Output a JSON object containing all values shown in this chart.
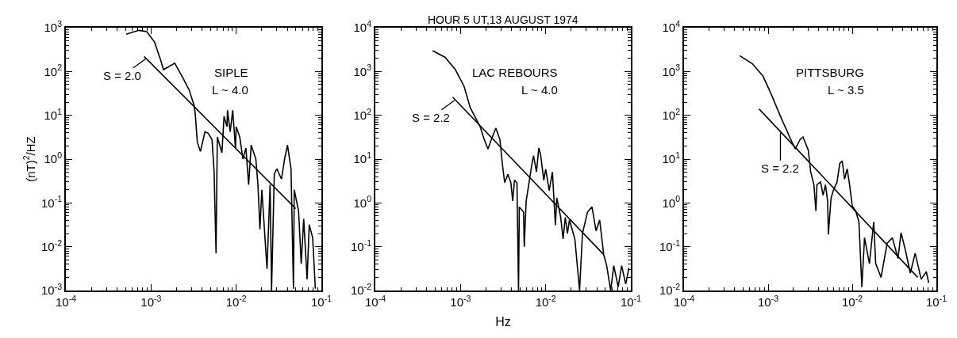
{
  "chart_data": [
    {
      "type": "line",
      "ylabel": "(nT)$^{2}$/HZ",
      "annotations": [
        "SIPLE",
        "L ~ 4.0",
        {
          "text": "S = 2.0",
          "x": 0.00088,
          "y": 200
        }
      ],
      "series": [
        {
          "color": "#000000",
          "x": [
            0.00051,
            0.00072,
            0.00089,
            0.0011,
            0.0013,
            0.0014,
            0.0019,
            0.0024,
            0.0028,
            0.0032,
            0.0033,
            0.0035,
            0.0038,
            0.0043,
            0.0047,
            0.0052,
            0.0055,
            0.0058,
            0.006,
            0.0068,
            0.0072,
            0.0078,
            0.0079,
            0.0085,
            0.0091,
            0.0098,
            0.01,
            0.011,
            0.012,
            0.013,
            0.014,
            0.015,
            0.017,
            0.018,
            0.019,
            0.02,
            0.023,
            0.025,
            0.026,
            0.028,
            0.03,
            0.034,
            0.037,
            0.04,
            0.044,
            0.047,
            0.048,
            0.054,
            0.058,
            0.062,
            0.068,
            0.072,
            0.079,
            0.085
          ],
          "values": [
            710,
            870,
            810,
            470,
            180,
            110,
            155,
            68,
            38,
            17,
            11,
            2.4,
            1.5,
            4.2,
            3.9,
            2.8,
            0.52,
            0.0071,
            3.2,
            1.4,
            9.5,
            5.5,
            13,
            4.2,
            13,
            1.8,
            5.5,
            3.2,
            1.0,
            1.8,
            0.26,
            2.1,
            1.0,
            0.26,
            0.025,
            0.2,
            0.0031,
            0.26,
            0.001,
            0.46,
            0.6,
            0.35,
            1.0,
            2.1,
            0.6,
            0.0011,
            0.2,
            0.065,
            0.0041,
            0.043,
            0.0018,
            0.032,
            0.016,
            0.0011
          ]
        },
        {
          "color": "#000000",
          "x": [
            0.00083,
            0.05
          ],
          "values": [
            220,
            0.074
          ]
        }
      ],
      "xlim": [
        0.0001,
        0.1
      ],
      "ylim": [
        0.001,
        1000
      ],
      "log": "xy",
      "xticks": [
        {
          "value": 0.0001,
          "label": "10$^{-4}$"
        },
        {
          "value": 0.001,
          "label": "10$^{-3}$"
        },
        {
          "value": 0.01,
          "label": "10$^{-2}$"
        },
        {
          "value": 0.1,
          "label": "10$^{-1}$"
        }
      ],
      "yticks": [
        {
          "value": 0.001,
          "label": "10$^{-3}$"
        },
        {
          "value": 0.01,
          "label": "10$^{-2}$"
        },
        {
          "value": 0.1,
          "label": "10$^{-1}$"
        },
        {
          "value": 1,
          "label": "10$^{0}$"
        },
        {
          "value": 10,
          "label": "10$^{1}$"
        },
        {
          "value": 100,
          "label": "10$^{2}$"
        },
        {
          "value": 1000,
          "label": "10$^{3}$"
        }
      ]
    },
    {
      "type": "line",
      "title": "HOUR 5 UT,13 AUGUST 1974",
      "xlabel": "Hz",
      "annotations": [
        "LAC REBOURS",
        "L ~ 4.0",
        {
          "text": "S = 2.2",
          "x": 0.00085,
          "y": 220
        }
      ],
      "series": [
        {
          "color": "#000000",
          "x": [
            0.00047,
            0.00066,
            0.00087,
            0.0011,
            0.0013,
            0.0017,
            0.0019,
            0.0021,
            0.0023,
            0.0026,
            0.0029,
            0.0031,
            0.0033,
            0.0036,
            0.0039,
            0.0041,
            0.0043,
            0.0046,
            0.0048,
            0.0049,
            0.0055,
            0.0056,
            0.0059,
            0.0063,
            0.0069,
            0.0072,
            0.0078,
            0.0083,
            0.0087,
            0.0095,
            0.01,
            0.011,
            0.012,
            0.013,
            0.0135,
            0.015,
            0.016,
            0.017,
            0.018,
            0.019,
            0.022,
            0.025,
            0.027,
            0.031,
            0.035,
            0.039,
            0.043,
            0.048,
            0.052,
            0.058,
            0.063,
            0.071,
            0.078,
            0.087,
            0.095
          ],
          "values": [
            3000,
            2100,
            1100,
            460,
            150,
            55,
            28,
            17,
            28,
            51,
            28,
            7.8,
            2.9,
            4.5,
            2.9,
            1.1,
            3.3,
            2.9,
            0.01,
            0.81,
            0.62,
            0.1,
            1.1,
            2.5,
            7.8,
            12,
            5.1,
            18,
            13,
            3.3,
            5.9,
            1.9,
            5.1,
            0.31,
            1.3,
            0.47,
            0.15,
            0.47,
            0.2,
            0.41,
            0.15,
            0.01,
            0.2,
            0.62,
            0.81,
            0.23,
            0.41,
            0.066,
            0.037,
            0.01,
            0.037,
            0.012,
            0.037,
            0.014,
            0.033
          ]
        },
        {
          "color": "#000000",
          "x": [
            0.00081,
            0.048
          ],
          "values": [
            260,
            0.066
          ]
        }
      ],
      "xlim": [
        0.0001,
        0.1
      ],
      "ylim": [
        0.01,
        10000
      ],
      "log": "xy",
      "xticks": [
        {
          "value": 0.0001,
          "label": "10$^{-4}$"
        },
        {
          "value": 0.001,
          "label": "10$^{-3}$"
        },
        {
          "value": 0.01,
          "label": "10$^{-2}$"
        },
        {
          "value": 0.1,
          "label": "10$^{-1}$"
        }
      ],
      "yticks": [
        {
          "value": 0.01,
          "label": "10$^{-2}$"
        },
        {
          "value": 0.1,
          "label": "10$^{-1}$"
        },
        {
          "value": 1,
          "label": "10$^{0}$"
        },
        {
          "value": 10,
          "label": "10$^{1}$"
        },
        {
          "value": 100,
          "label": "10$^{2}$"
        },
        {
          "value": 1000,
          "label": "10$^{3}$"
        },
        {
          "value": 10000,
          "label": "10$^{4}$"
        }
      ]
    },
    {
      "type": "line",
      "annotations": [
        "PITTSBURG",
        "L ~ 3.5",
        {
          "text": "S = 2.2",
          "x": 0.0014,
          "y": 40
        }
      ],
      "series": [
        {
          "color": "#000000",
          "x": [
            0.00046,
            0.00065,
            0.00087,
            0.0011,
            0.0014,
            0.0018,
            0.0021,
            0.0024,
            0.0026,
            0.003,
            0.0032,
            0.0035,
            0.0037,
            0.0038,
            0.0042,
            0.0045,
            0.0048,
            0.0051,
            0.0052,
            0.0056,
            0.006,
            0.0066,
            0.0071,
            0.0076,
            0.0081,
            0.0087,
            0.0093,
            0.01,
            0.011,
            0.012,
            0.013,
            0.014,
            0.016,
            0.018,
            0.019,
            0.022,
            0.026,
            0.03,
            0.035,
            0.038,
            0.043,
            0.049,
            0.056,
            0.066,
            0.076,
            0.081
          ],
          "values": [
            2300,
            1500,
            780,
            290,
            95,
            32,
            17,
            28,
            32,
            16,
            5.2,
            2.6,
            0.65,
            2.6,
            3.0,
            1.5,
            2.6,
            1.1,
            0.19,
            1.3,
            2.0,
            3.0,
            7.9,
            9.1,
            3.5,
            6.0,
            2.6,
            0.85,
            0.65,
            0.37,
            0.012,
            0.16,
            0.041,
            0.37,
            0.041,
            0.02,
            0.12,
            0.16,
            0.054,
            0.21,
            0.081,
            0.025,
            0.071,
            0.018,
            0.027,
            0.015
          ]
        },
        {
          "color": "#000000",
          "x": [
            0.00078,
            0.06
          ],
          "values": [
            140,
            0.02
          ]
        }
      ],
      "xlim": [
        0.0001,
        0.1
      ],
      "ylim": [
        0.01,
        10000
      ],
      "log": "xy",
      "xticks": [
        {
          "value": 0.0001,
          "label": "10$^{-4}$"
        },
        {
          "value": 0.001,
          "label": "10$^{-3}$"
        },
        {
          "value": 0.01,
          "label": "10$^{-2}$"
        },
        {
          "value": 0.1,
          "label": "10$^{-1}$"
        }
      ],
      "yticks": [
        {
          "value": 0.01,
          "label": "10$^{-2}$"
        },
        {
          "value": 0.1,
          "label": "10$^{-1}$"
        },
        {
          "value": 1,
          "label": "10$^{0}$"
        },
        {
          "value": 10,
          "label": "10$^{1}$"
        },
        {
          "value": 100,
          "label": "10$^{2}$"
        },
        {
          "value": 1000,
          "label": "10$^{3}$"
        },
        {
          "value": 10000,
          "label": "10$^{4}$"
        }
      ]
    }
  ]
}
